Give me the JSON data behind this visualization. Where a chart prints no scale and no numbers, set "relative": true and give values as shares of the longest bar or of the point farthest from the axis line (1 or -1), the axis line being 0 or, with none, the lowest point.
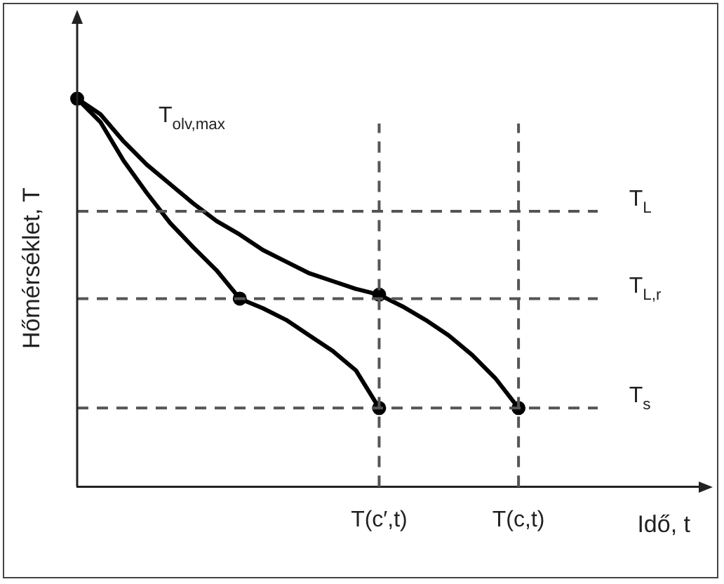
{
  "chart_data": {
    "type": "line",
    "relative": true,
    "xlabel": "Idő, t",
    "ylabel": "Hőmérséklet, T",
    "tick_labels": "x",
    "grid": false,
    "legend": false,
    "marker": "none",
    "line_style": "solid",
    "categories": [
      null,
      null,
      null,
      null,
      null,
      null,
      null,
      null,
      null,
      null,
      null,
      null,
      null,
      "T(c′,t)",
      null,
      null,
      null,
      null,
      null,
      "T(c,t)",
      null,
      null,
      null,
      null,
      null,
      null,
      null,
      null
    ],
    "series": [
      {
        "color": "#000000",
        "values": [
          1.0,
          0.94,
          0.84,
          0.757,
          0.68,
          0.617,
          0.558,
          0.485,
          0.46,
          0.43,
          0.39,
          0.35,
          0.3,
          0.203,
          null,
          null,
          null,
          null,
          null,
          null,
          null,
          null,
          null,
          null,
          null,
          null,
          null,
          null
        ]
      },
      {
        "color": "#000000",
        "values": [
          1.0,
          0.96,
          0.89,
          0.83,
          0.78,
          0.73,
          0.685,
          0.65,
          0.61,
          0.58,
          0.55,
          0.53,
          0.51,
          0.495,
          0.465,
          0.43,
          0.39,
          0.34,
          0.28,
          0.203,
          null,
          null,
          null,
          null,
          null,
          null,
          null,
          null
        ]
      },
      {
        "type": "scatter",
        "marker": "circle",
        "color": "#000000",
        "values": [
          1.0,
          null,
          null,
          null,
          null,
          null,
          null,
          0.485,
          null,
          null,
          null,
          null,
          null,
          0.203,
          null,
          null,
          null,
          null,
          null,
          null,
          null,
          null,
          null,
          null,
          null,
          null,
          null,
          null
        ]
      },
      {
        "type": "scatter",
        "marker": "circle",
        "color": "#000000",
        "values": [
          null,
          null,
          null,
          null,
          null,
          null,
          null,
          null,
          null,
          null,
          null,
          null,
          null,
          0.495,
          null,
          null,
          null,
          null,
          null,
          0.203,
          null,
          null,
          null,
          null,
          null,
          null,
          null,
          null
        ]
      }
    ],
    "ref_lines": [
      {
        "axis": "y",
        "value": 0.71,
        "label": "T$_{L}$",
        "color": "#555555",
        "line_style": "dashed"
      },
      {
        "axis": "y",
        "value": 0.485,
        "label": "T$_{L,r}$",
        "color": "#555555",
        "line_style": "dashed"
      },
      {
        "axis": "y",
        "value": 0.203,
        "label": "T$_{s}$",
        "color": "#555555",
        "line_style": "dashed"
      },
      {
        "axis": "x",
        "value": "T(c′,t)",
        "color": "#555555",
        "line_style": "dashed"
      },
      {
        "axis": "x",
        "value": "T(c,t)",
        "color": "#555555",
        "line_style": "dashed"
      }
    ],
    "annotations": [
      "T$_{olv,max}$"
    ]
  }
}
